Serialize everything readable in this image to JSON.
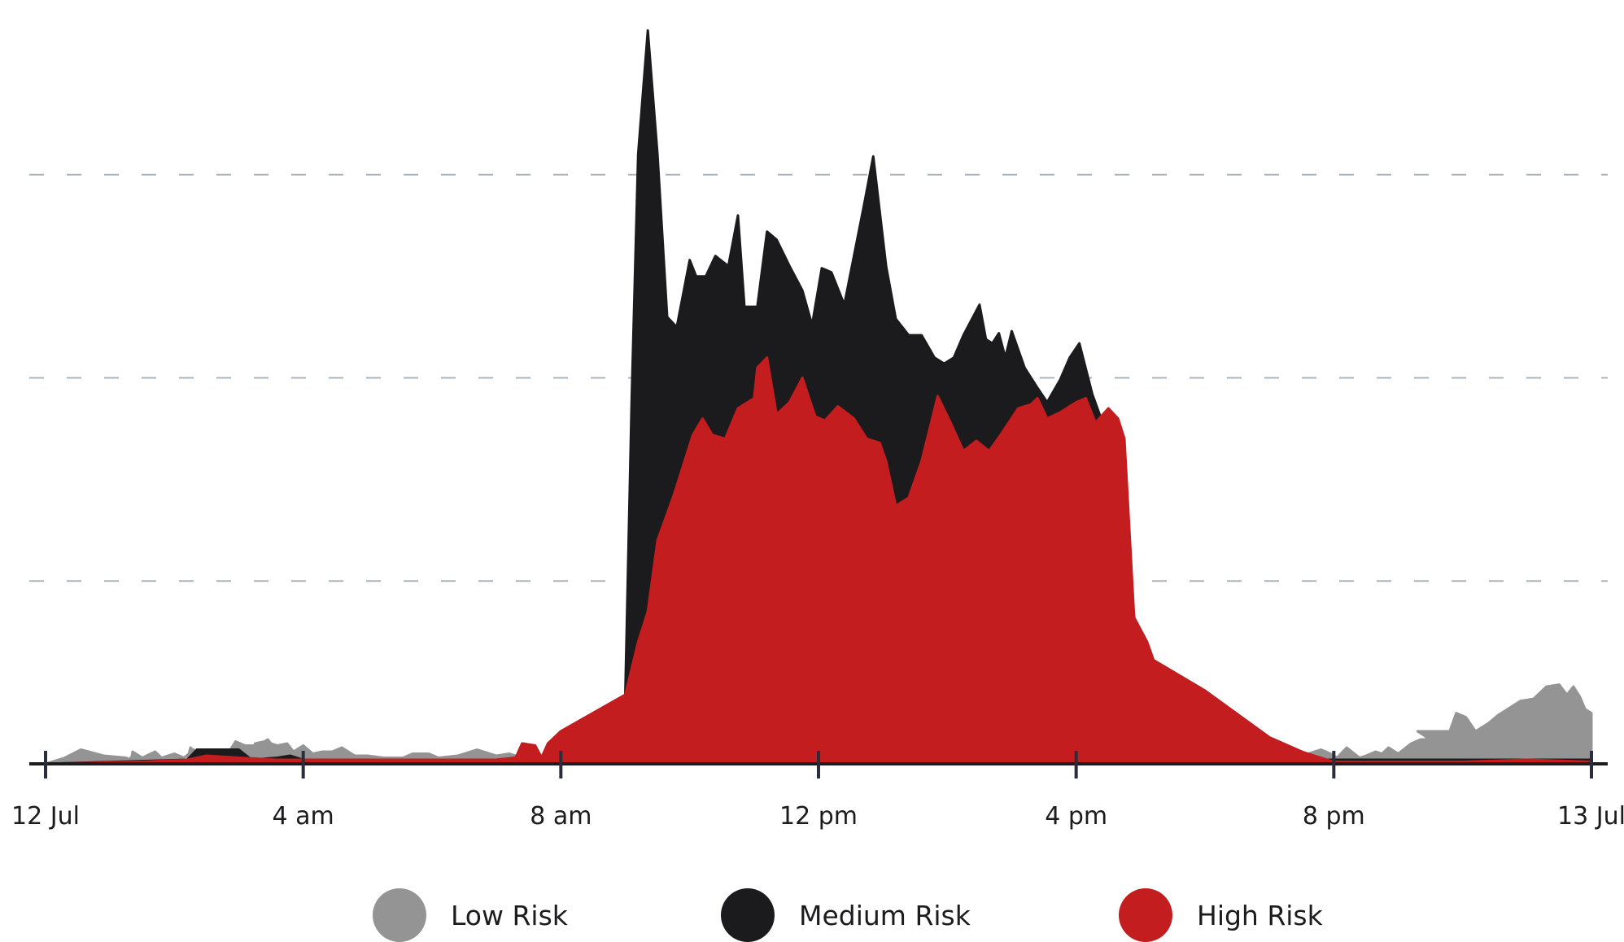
{
  "chart_data": {
    "type": "area",
    "stacked": false,
    "x_unit": "hour",
    "x_range": [
      0,
      24
    ],
    "y_range": [
      0,
      360
    ],
    "grid": "dashed horizontal",
    "legend_placement": "bottom",
    "x_tick_labels": [
      "12 Jul",
      "4 am",
      "8 am",
      "12 pm",
      "4 pm",
      "8 pm",
      "13 Jul"
    ],
    "series": [
      {
        "name": "Low Risk",
        "color": "#949494",
        "points": [
          [
            0,
            0
          ],
          [
            0.3,
            3
          ],
          [
            0.55,
            7
          ],
          [
            0.9,
            4
          ],
          [
            1.25,
            3
          ],
          [
            1.4,
            1
          ],
          [
            1.35,
            0
          ],
          [
            1.55,
            0
          ],
          [
            1.5,
            1
          ],
          [
            1.45,
            0
          ],
          [
            1.32,
            3
          ],
          [
            1.3,
            0
          ],
          [
            1.32,
            0
          ],
          [
            1.35,
            6
          ],
          [
            1.5,
            3
          ],
          [
            1.7,
            6
          ],
          [
            1.8,
            3
          ],
          [
            2.0,
            5
          ],
          [
            2.15,
            3
          ],
          [
            2.3,
            7
          ],
          [
            2.4,
            3
          ],
          [
            2.3,
            2
          ],
          [
            2.25,
            3
          ],
          [
            2.6,
            3
          ],
          [
            2.55,
            5
          ],
          [
            2.5,
            4
          ],
          [
            2.45,
            3
          ],
          [
            2.4,
            4
          ],
          [
            2.35,
            5
          ],
          [
            2.3,
            4
          ],
          [
            2.25,
            5
          ],
          [
            2.2,
            4
          ],
          [
            2.15,
            3
          ],
          [
            2.1,
            1
          ],
          [
            2.0,
            1
          ],
          [
            2.2,
            2
          ],
          [
            2.25,
            8
          ],
          [
            2.4,
            3
          ],
          [
            2.5,
            3
          ],
          [
            2.35,
            5
          ],
          [
            2.4,
            3
          ],
          [
            2.55,
            4
          ],
          [
            2.6,
            5
          ],
          [
            2.7,
            7
          ],
          [
            2.85,
            6
          ],
          [
            2.95,
            11
          ],
          [
            3.1,
            9
          ],
          [
            3.3,
            9
          ],
          [
            3.45,
            12
          ],
          [
            3.5,
            10
          ],
          [
            3.25,
            10
          ],
          [
            3.4,
            11
          ],
          [
            3.6,
            9
          ],
          [
            3.75,
            10
          ],
          [
            3.85,
            6
          ],
          [
            4.0,
            9
          ],
          [
            4.15,
            5
          ],
          [
            4.3,
            6
          ],
          [
            4.45,
            6
          ],
          [
            4.6,
            8
          ],
          [
            4.8,
            4
          ],
          [
            5.0,
            4
          ],
          [
            5.25,
            3
          ],
          [
            5.55,
            3
          ],
          [
            5.7,
            5
          ],
          [
            5.95,
            5
          ],
          [
            6.1,
            3
          ],
          [
            6.4,
            4
          ],
          [
            6.7,
            7
          ],
          [
            7.0,
            4
          ],
          [
            7.2,
            5
          ],
          [
            7.4,
            3
          ],
          [
            7.6,
            2
          ],
          [
            8.0,
            2
          ],
          [
            8.5,
            2
          ],
          [
            9.0,
            2
          ],
          [
            9.5,
            2
          ],
          [
            10.0,
            2
          ],
          [
            11.0,
            2
          ],
          [
            12.0,
            2
          ],
          [
            13.0,
            2
          ],
          [
            14.0,
            2
          ],
          [
            15.0,
            2
          ],
          [
            16.0,
            2
          ],
          [
            17.0,
            2
          ],
          [
            18.0,
            2
          ],
          [
            19.0,
            2
          ],
          [
            19.6,
            5
          ],
          [
            19.8,
            7
          ],
          [
            19.95,
            5
          ],
          [
            20.05,
            3
          ],
          [
            20.2,
            8
          ],
          [
            20.4,
            3
          ],
          [
            20.5,
            4
          ],
          [
            20.65,
            6
          ],
          [
            20.75,
            5
          ],
          [
            20.85,
            8
          ],
          [
            21.0,
            5
          ],
          [
            21.2,
            10
          ],
          [
            21.35,
            12
          ],
          [
            21.5,
            12
          ],
          [
            21.6,
            11
          ],
          [
            21.7,
            10
          ],
          [
            21.8,
            5
          ],
          [
            21.55,
            10
          ],
          [
            21.4,
            14
          ],
          [
            21.35,
            15
          ],
          [
            21.3,
            16
          ],
          [
            21.8,
            16
          ],
          [
            21.9,
            25
          ],
          [
            22.05,
            23
          ],
          [
            22.2,
            16
          ],
          [
            22.4,
            20
          ],
          [
            22.55,
            24
          ],
          [
            22.7,
            27
          ],
          [
            22.9,
            31
          ],
          [
            23.1,
            32
          ],
          [
            23.3,
            38
          ],
          [
            23.5,
            39
          ],
          [
            23.62,
            34
          ],
          [
            23.72,
            38
          ],
          [
            23.82,
            33
          ],
          [
            23.9,
            27
          ],
          [
            24,
            25
          ],
          [
            24,
            0
          ]
        ]
      },
      {
        "name": "Medium Risk",
        "color": "#1b1b1d",
        "points": [
          [
            0,
            0
          ],
          [
            2.2,
            2
          ],
          [
            2.35,
            7
          ],
          [
            2.5,
            7
          ],
          [
            3.0,
            7
          ],
          [
            3.2,
            2
          ],
          [
            3.6,
            3
          ],
          [
            3.8,
            4
          ],
          [
            4.0,
            2
          ],
          [
            4.2,
            2
          ],
          [
            5.0,
            2
          ],
          [
            6.0,
            2
          ],
          [
            7.0,
            2
          ],
          [
            7.3,
            3
          ],
          [
            7.4,
            10
          ],
          [
            7.6,
            9
          ],
          [
            7.7,
            3
          ],
          [
            7.8,
            10
          ],
          [
            8.0,
            16
          ],
          [
            8.5,
            25
          ],
          [
            9.0,
            34
          ],
          [
            9.1,
            180
          ],
          [
            9.2,
            300
          ],
          [
            9.35,
            361
          ],
          [
            9.5,
            300
          ],
          [
            9.65,
            220
          ],
          [
            9.8,
            215
          ],
          [
            10.0,
            248
          ],
          [
            10.1,
            240
          ],
          [
            10.25,
            240
          ],
          [
            10.4,
            250
          ],
          [
            10.6,
            245
          ],
          [
            10.75,
            270
          ],
          [
            10.85,
            225
          ],
          [
            11.05,
            225
          ],
          [
            11.2,
            262
          ],
          [
            11.35,
            258
          ],
          [
            11.55,
            245
          ],
          [
            11.75,
            233
          ],
          [
            11.9,
            216
          ],
          [
            12.05,
            244
          ],
          [
            12.2,
            242
          ],
          [
            12.4,
            226
          ],
          [
            12.7,
            274
          ],
          [
            12.85,
            299
          ],
          [
            13.05,
            245
          ],
          [
            13.2,
            219
          ],
          [
            13.4,
            211
          ],
          [
            13.6,
            211
          ],
          [
            13.8,
            200
          ],
          [
            13.95,
            197
          ],
          [
            14.1,
            200
          ],
          [
            14.25,
            211
          ],
          [
            14.5,
            226
          ],
          [
            14.6,
            209
          ],
          [
            14.7,
            207
          ],
          [
            14.8,
            212
          ],
          [
            14.9,
            200
          ],
          [
            15.0,
            213
          ],
          [
            15.2,
            195
          ],
          [
            15.4,
            185
          ],
          [
            15.55,
            178
          ],
          [
            15.75,
            189
          ],
          [
            15.9,
            200
          ],
          [
            16.05,
            207
          ],
          [
            16.25,
            182
          ],
          [
            16.5,
            160
          ],
          [
            16.75,
            133
          ],
          [
            16.9,
            72
          ],
          [
            17.1,
            60
          ],
          [
            17.2,
            51
          ],
          [
            18.0,
            36
          ],
          [
            19.0,
            13
          ],
          [
            19.5,
            6
          ],
          [
            19.8,
            2
          ],
          [
            20.0,
            2
          ],
          [
            22.0,
            2
          ],
          [
            23.0,
            2
          ],
          [
            24,
            2
          ],
          [
            24,
            0
          ]
        ]
      },
      {
        "name": "High Risk",
        "color": "#c41d20",
        "points": [
          [
            0,
            0
          ],
          [
            1.5,
            1
          ],
          [
            2.2,
            2
          ],
          [
            2.5,
            4
          ],
          [
            3.0,
            3
          ],
          [
            3.6,
            2
          ],
          [
            4.0,
            2
          ],
          [
            5.0,
            2
          ],
          [
            6.0,
            2
          ],
          [
            7.0,
            2
          ],
          [
            7.3,
            3
          ],
          [
            7.4,
            10
          ],
          [
            7.6,
            9
          ],
          [
            7.7,
            3
          ],
          [
            7.8,
            10
          ],
          [
            8.0,
            16
          ],
          [
            8.5,
            25
          ],
          [
            9.0,
            34
          ],
          [
            9.2,
            60
          ],
          [
            9.35,
            75
          ],
          [
            9.5,
            110
          ],
          [
            9.75,
            132
          ],
          [
            10.05,
            162
          ],
          [
            10.2,
            170
          ],
          [
            10.35,
            162
          ],
          [
            10.55,
            160
          ],
          [
            10.75,
            175
          ],
          [
            11.0,
            180
          ],
          [
            11.05,
            195
          ],
          [
            11.2,
            200
          ],
          [
            11.35,
            172
          ],
          [
            11.55,
            178
          ],
          [
            11.75,
            190
          ],
          [
            11.95,
            171
          ],
          [
            12.1,
            169
          ],
          [
            12.3,
            176
          ],
          [
            12.55,
            170
          ],
          [
            12.75,
            160
          ],
          [
            12.95,
            158
          ],
          [
            13.05,
            149
          ],
          [
            13.2,
            127
          ],
          [
            13.4,
            131
          ],
          [
            13.6,
            149
          ],
          [
            13.85,
            181
          ],
          [
            14.05,
            168
          ],
          [
            14.25,
            154
          ],
          [
            14.45,
            159
          ],
          [
            14.65,
            154
          ],
          [
            14.85,
            163
          ],
          [
            15.1,
            175
          ],
          [
            15.3,
            177
          ],
          [
            15.4,
            180
          ],
          [
            15.55,
            170
          ],
          [
            15.75,
            173
          ],
          [
            16.0,
            178
          ],
          [
            16.15,
            180
          ],
          [
            16.3,
            168
          ],
          [
            16.5,
            175
          ],
          [
            16.65,
            170
          ],
          [
            16.75,
            160
          ],
          [
            16.9,
            72
          ],
          [
            17.1,
            60
          ],
          [
            17.2,
            51
          ],
          [
            18.0,
            36
          ],
          [
            19.0,
            13
          ],
          [
            19.5,
            6
          ],
          [
            19.9,
            2
          ],
          [
            20.0,
            1
          ],
          [
            21.0,
            1
          ],
          [
            22.0,
            1
          ],
          [
            23.0,
            2
          ],
          [
            24,
            1
          ],
          [
            24,
            0
          ]
        ]
      }
    ]
  }
}
